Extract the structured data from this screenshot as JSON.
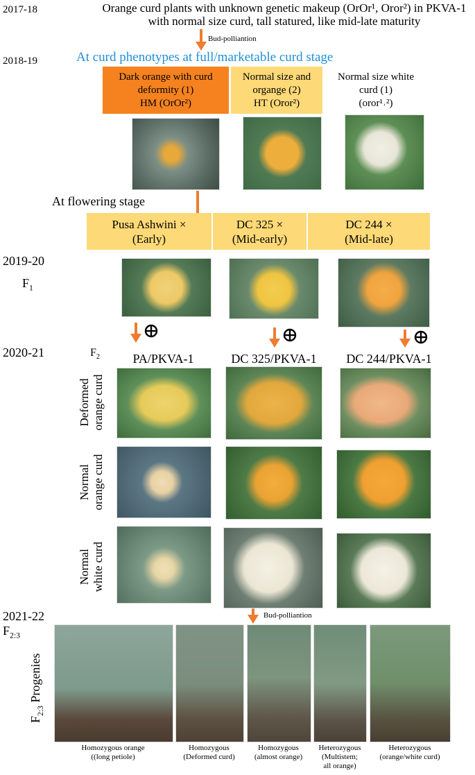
{
  "years": [
    "2017-18",
    "2018-19",
    "2019-20",
    "2020-21",
    "2021-22"
  ],
  "header": {
    "line1": "Orange curd plants with unknown genetic makeup (OrOr¹, Oror²) in PKVA-1",
    "line2": "with normal size curd, tall statured, like mid-late maturity"
  },
  "arrow_labels": [
    "Bud-polliantion",
    "Bud-polliantion"
  ],
  "phenotype_heading": "At curd phenotypes at full/marketable curd stage",
  "phenotypes": [
    {
      "lines": [
        "Dark orange with curd",
        "deformity (1)",
        "HM (OrOr²)"
      ]
    },
    {
      "lines": [
        "Normal size and",
        "organge (2)",
        "HT (Oror²)"
      ]
    },
    {
      "lines": [
        "Normal size white",
        "curd (1)",
        "(oror¹˒²)"
      ]
    }
  ],
  "flowering_heading": "At flowering stage",
  "parents": [
    {
      "name": "Pusa Ashwini ×",
      "maturity": "(Early)"
    },
    {
      "name": "DC 325 ×",
      "maturity": "(Mid-early)"
    },
    {
      "name": "DC 244 ×",
      "maturity": "(Mid-late)"
    }
  ],
  "generations": {
    "f1": {
      "base": "F",
      "sub": "1"
    },
    "f2": {
      "base": "F",
      "sub": "2"
    },
    "f23": {
      "base": "F",
      "sub": "2:3"
    },
    "progenies": {
      "base": "F",
      "sub": "2:3",
      "text": "Progenies"
    }
  },
  "crosses": [
    "PA/PKVA-1",
    "DC 325/PKVA-1",
    "DC 244/PKVA-1"
  ],
  "rows": [
    {
      "lines": [
        "Deformed",
        "orange curd"
      ]
    },
    {
      "lines": [
        "Normal",
        "orange curd"
      ]
    },
    {
      "lines": [
        "Normal",
        "white curd"
      ]
    }
  ],
  "progeny_captions": [
    {
      "lines": [
        "Homozygous orange",
        "((long petiole)"
      ]
    },
    {
      "lines": [
        "Homozygous",
        "(Deformed curd)"
      ]
    },
    {
      "lines": [
        "Homozygous",
        "(almost orange)"
      ]
    },
    {
      "lines": [
        "Heterozygous",
        "(Multistem;",
        "all orange)"
      ]
    },
    {
      "lines": [
        "Heterozygous",
        "(orange/white curd)"
      ]
    }
  ]
}
